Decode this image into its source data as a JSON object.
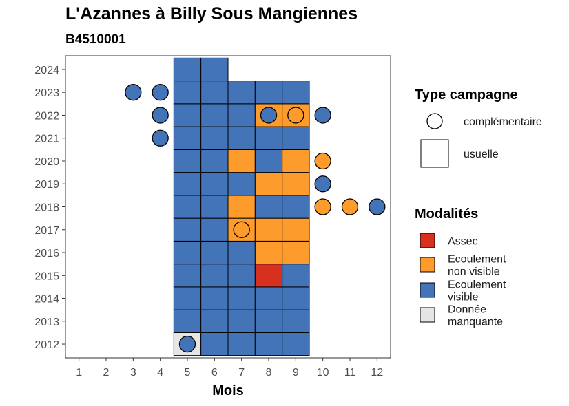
{
  "title": "L'Azannes à Billy Sous Mangiennes",
  "subtitle": "B4510001",
  "chart_data": {
    "type": "heatmap",
    "xlabel": "Mois",
    "ylabel": "",
    "x_ticks": [
      "1",
      "2",
      "3",
      "4",
      "5",
      "6",
      "7",
      "8",
      "9",
      "10",
      "11",
      "12"
    ],
    "y_ticks": [
      "2012",
      "2013",
      "2014",
      "2015",
      "2016",
      "2017",
      "2018",
      "2019",
      "2020",
      "2021",
      "2022",
      "2023",
      "2024"
    ],
    "xlim": [
      0.5,
      12.5
    ],
    "ylim": [
      2011.4,
      2024.6
    ],
    "colors": {
      "Assec": "#d7301f",
      "Ecoulement non visible": "#fd9c2c",
      "Ecoulement visible": "#4474b8",
      "Donnée manquante": "#e5e5e5"
    },
    "legend_type": {
      "title": "Type campagne",
      "items": [
        {
          "label": "complémentaire",
          "shape": "circle"
        },
        {
          "label": "usuelle",
          "shape": "square"
        }
      ]
    },
    "legend_modalites": {
      "title": "Modalités",
      "items": [
        {
          "key": "Assec",
          "lines": [
            "Assec"
          ]
        },
        {
          "key": "Ecoulement non visible",
          "lines": [
            "Ecoulement",
            "non visible"
          ]
        },
        {
          "key": "Ecoulement visible",
          "lines": [
            "Ecoulement",
            "visible"
          ]
        },
        {
          "key": "Donnée manquante",
          "lines": [
            "Donnée",
            "manquante"
          ]
        }
      ]
    },
    "usuelle": [
      {
        "year": 2012,
        "months": {
          "5": "Donnée manquante",
          "6": "Ecoulement visible",
          "7": "Ecoulement visible",
          "8": "Ecoulement visible",
          "9": "Ecoulement visible"
        }
      },
      {
        "year": 2013,
        "months": {
          "5": "Ecoulement visible",
          "6": "Ecoulement visible",
          "7": "Ecoulement visible",
          "8": "Ecoulement visible",
          "9": "Ecoulement visible"
        }
      },
      {
        "year": 2014,
        "months": {
          "5": "Ecoulement visible",
          "6": "Ecoulement visible",
          "7": "Ecoulement visible",
          "8": "Ecoulement visible",
          "9": "Ecoulement visible"
        }
      },
      {
        "year": 2015,
        "months": {
          "5": "Ecoulement visible",
          "6": "Ecoulement visible",
          "7": "Ecoulement visible",
          "8": "Assec",
          "9": "Ecoulement visible"
        }
      },
      {
        "year": 2016,
        "months": {
          "5": "Ecoulement visible",
          "6": "Ecoulement visible",
          "7": "Ecoulement visible",
          "8": "Ecoulement non visible",
          "9": "Ecoulement non visible"
        }
      },
      {
        "year": 2017,
        "months": {
          "5": "Ecoulement visible",
          "6": "Ecoulement visible",
          "7": "Ecoulement non visible",
          "8": "Ecoulement non visible",
          "9": "Ecoulement non visible"
        }
      },
      {
        "year": 2018,
        "months": {
          "5": "Ecoulement visible",
          "6": "Ecoulement visible",
          "7": "Ecoulement non visible",
          "8": "Ecoulement visible",
          "9": "Ecoulement visible"
        }
      },
      {
        "year": 2019,
        "months": {
          "5": "Ecoulement visible",
          "6": "Ecoulement visible",
          "7": "Ecoulement visible",
          "8": "Ecoulement non visible",
          "9": "Ecoulement non visible"
        }
      },
      {
        "year": 2020,
        "months": {
          "5": "Ecoulement visible",
          "6": "Ecoulement visible",
          "7": "Ecoulement non visible",
          "8": "Ecoulement visible",
          "9": "Ecoulement non visible"
        }
      },
      {
        "year": 2021,
        "months": {
          "5": "Ecoulement visible",
          "6": "Ecoulement visible",
          "7": "Ecoulement visible",
          "8": "Ecoulement visible",
          "9": "Ecoulement visible"
        }
      },
      {
        "year": 2022,
        "months": {
          "5": "Ecoulement visible",
          "6": "Ecoulement visible",
          "7": "Ecoulement visible",
          "8": "Ecoulement non visible",
          "9": "Ecoulement non visible"
        }
      },
      {
        "year": 2023,
        "months": {
          "5": "Ecoulement visible",
          "6": "Ecoulement visible",
          "7": "Ecoulement visible",
          "8": "Ecoulement visible",
          "9": "Ecoulement visible"
        }
      },
      {
        "year": 2024,
        "months": {
          "5": "Ecoulement visible",
          "6": "Ecoulement visible"
        }
      }
    ],
    "complementaire": [
      {
        "year": 2012,
        "month": 5,
        "value": "Ecoulement visible"
      },
      {
        "year": 2017,
        "month": 7,
        "value": "Ecoulement non visible"
      },
      {
        "year": 2018,
        "month": 10,
        "value": "Ecoulement non visible"
      },
      {
        "year": 2018,
        "month": 11,
        "value": "Ecoulement non visible"
      },
      {
        "year": 2018,
        "month": 12,
        "value": "Ecoulement visible"
      },
      {
        "year": 2019,
        "month": 10,
        "value": "Ecoulement visible"
      },
      {
        "year": 2020,
        "month": 10,
        "value": "Ecoulement non visible"
      },
      {
        "year": 2021,
        "month": 4,
        "value": "Ecoulement visible"
      },
      {
        "year": 2022,
        "month": 4,
        "value": "Ecoulement visible"
      },
      {
        "year": 2022,
        "month": 8,
        "value": "Ecoulement visible"
      },
      {
        "year": 2022,
        "month": 9,
        "value": "Ecoulement non visible"
      },
      {
        "year": 2022,
        "month": 10,
        "value": "Ecoulement visible"
      },
      {
        "year": 2023,
        "month": 3,
        "value": "Ecoulement visible"
      },
      {
        "year": 2023,
        "month": 4,
        "value": "Ecoulement visible"
      }
    ]
  }
}
